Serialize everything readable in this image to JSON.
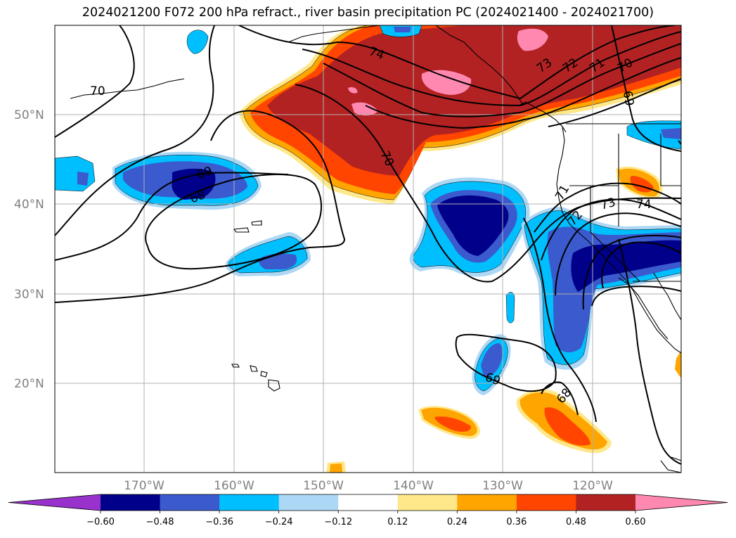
{
  "title": "2024021200 F072 200 hPa refract., river basin precipitation PC (2024021400 - 2024021700)",
  "lat_labels": [
    "50°N",
    "40°N",
    "30°N",
    "20°N"
  ],
  "lon_labels": [
    "170°W",
    "160°W",
    "150°W",
    "140°W",
    "130°W",
    "120°W"
  ],
  "colorbar": {
    "ticks": [
      "−0.60",
      "−0.48",
      "−0.36",
      "−0.24",
      "−0.12",
      "0.12",
      "0.24",
      "0.36",
      "0.48",
      "0.60"
    ],
    "colors": [
      "#9932cc",
      "#00008b",
      "#3a5acd",
      "#00bfff",
      "#add8f5",
      "#ffffff",
      "#ffe88a",
      "#ffa500",
      "#ff4500",
      "#b22222",
      "#ff88b0"
    ]
  },
  "contour_labels": [
    "70",
    "74",
    "73",
    "72",
    "71",
    "70",
    "69",
    "69",
    "68",
    "70",
    "73",
    "74",
    "72",
    "71",
    "69",
    "68"
  ],
  "palette": {
    "darkblue": "#00008b",
    "blue": "#3a5acd",
    "cyan": "#00bfff",
    "lightblue": "#add8f5",
    "yellow": "#ffe88a",
    "orange": "#ffa500",
    "redorange": "#ff4500",
    "darkred": "#b22222",
    "pink": "#ff88b0"
  }
}
